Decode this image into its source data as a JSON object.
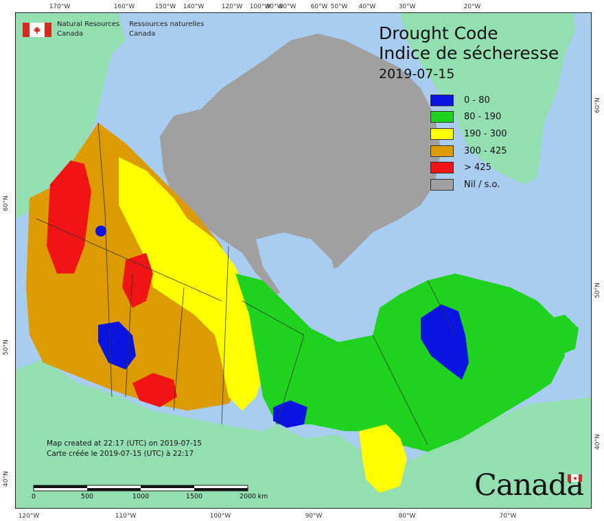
{
  "title": {
    "line1": "Drought Code",
    "line2": "Indice de sécheresse",
    "date": "2019-07-15"
  },
  "agency": {
    "en_line1": "Natural Resources",
    "en_line2": "Canada",
    "fr_line1": "Ressources naturelles",
    "fr_line2": "Canada"
  },
  "legend": [
    {
      "label": "0 - 80",
      "color": "#0a14e0"
    },
    {
      "label": "80 - 190",
      "color": "#1ed21e"
    },
    {
      "label": "190 - 300",
      "color": "#ffff00"
    },
    {
      "label": "300 - 425",
      "color": "#dc9b00"
    },
    {
      "label": "> 425",
      "color": "#f01414"
    },
    {
      "label": "Nil / s.o.",
      "color": "#a0a0a0"
    }
  ],
  "footer": {
    "created_en": "Map created at 22:17 (UTC) on 2019-07-15",
    "created_fr": "Carte créée le 2019-07-15 (UTC) à 22:17"
  },
  "scale": {
    "labels": [
      "0",
      "500",
      "1000",
      "1500",
      "2000"
    ],
    "unit": "km"
  },
  "wordmark": "Canada",
  "graticule": {
    "top": [
      "170°W",
      "160°W",
      "150°W",
      "140°W",
      "120°W",
      "100°W",
      "90°W",
      "80°W",
      "60°W",
      "50°W",
      "40°W",
      "30°W",
      "20°W"
    ],
    "bottom": [
      "120°W",
      "110°W",
      "100°W",
      "90°W",
      "80°W",
      "70°W"
    ],
    "left": [
      "60°N",
      "50°N",
      "40°N"
    ],
    "right": [
      "60°N",
      "50°N",
      "40°N"
    ]
  },
  "colors": {
    "ocean": "#a9cdf0",
    "land_outside": "#93dfb1",
    "nil_gray": "#a0a0a0"
  }
}
